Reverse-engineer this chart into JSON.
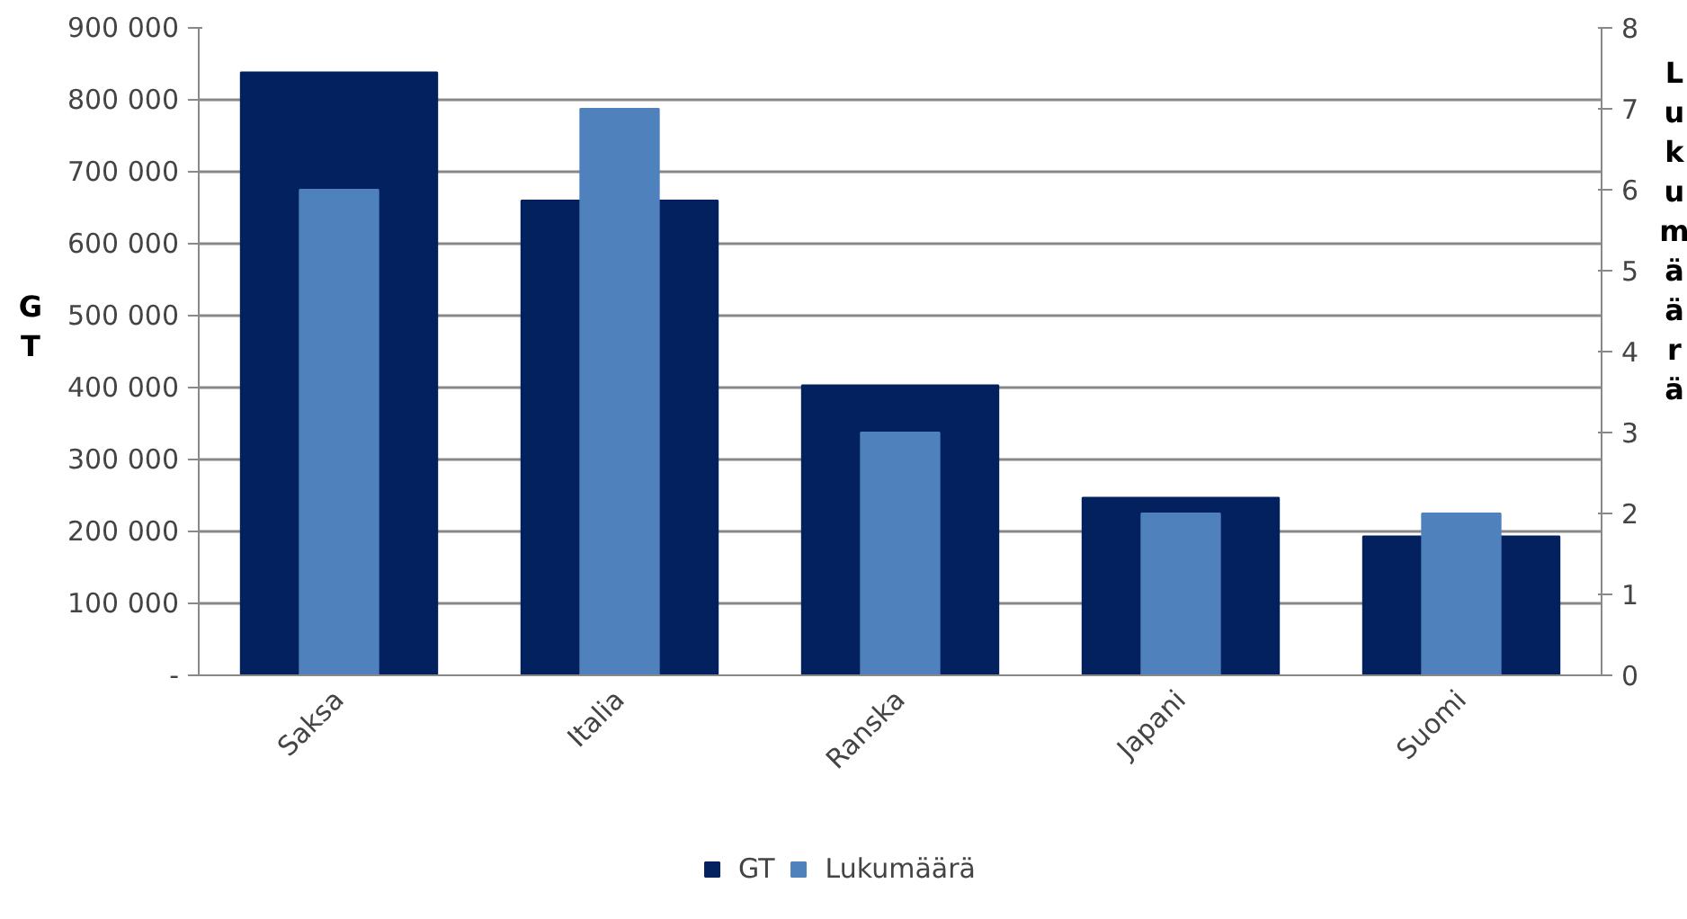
{
  "chart_data": {
    "type": "bar",
    "categories": [
      "Saksa",
      "Italia",
      "Ranska",
      "Japani",
      "Suomi"
    ],
    "series": [
      {
        "name": "GT",
        "color": "#03215e",
        "values": [
          838000,
          660000,
          403000,
          247000,
          193000
        ]
      },
      {
        "name": "Lukumäärä",
        "color": "#4f81bd",
        "values": [
          6,
          7,
          3,
          2,
          2
        ],
        "axis": "y2"
      }
    ],
    "ylabel": "GT",
    "y2label": "Lukumäärä",
    "ylim": [
      0,
      900000
    ],
    "yticks": [
      {
        "value": 0,
        "label": "-"
      },
      {
        "value": 100000,
        "label": "100 000"
      },
      {
        "value": 200000,
        "label": "200 000"
      },
      {
        "value": 300000,
        "label": "300 000"
      },
      {
        "value": 400000,
        "label": "400 000"
      },
      {
        "value": 500000,
        "label": "500 000"
      },
      {
        "value": 600000,
        "label": "600 000"
      },
      {
        "value": 700000,
        "label": "700 000"
      },
      {
        "value": 800000,
        "label": "800 000"
      },
      {
        "value": 900000,
        "label": "900 000"
      }
    ],
    "y2lim": [
      0,
      8
    ],
    "y2ticks": [
      0,
      1,
      2,
      3,
      4,
      5,
      6,
      7,
      8
    ],
    "grid": "y",
    "legend": "bottom"
  }
}
